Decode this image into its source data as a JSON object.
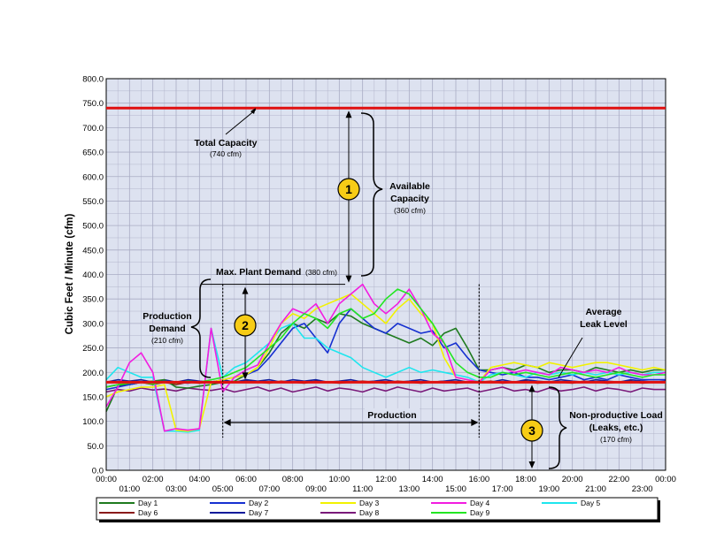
{
  "chart_data": {
    "type": "line",
    "ylabel": "Cubic Feet / Minute (cfm)",
    "ylim": [
      0,
      800
    ],
    "y_ticks": [
      "0.0",
      "50.0",
      "100.0",
      "150.0",
      "200.0",
      "250.0",
      "300.0",
      "350.0",
      "400.0",
      "450.0",
      "500.0",
      "550.0",
      "600.0",
      "650.0",
      "700.0",
      "750.0",
      "800.0"
    ],
    "x_ticks_top": [
      "00:00",
      "02:00",
      "04:00",
      "06:00",
      "08:00",
      "10:00",
      "12:00",
      "14:00",
      "16:00",
      "18:00",
      "20:00",
      "22:00",
      "00:00"
    ],
    "x_ticks_bottom": [
      "01:00",
      "03:00",
      "05:00",
      "07:00",
      "09:00",
      "11:00",
      "13:00",
      "15:00",
      "17:00",
      "19:00",
      "21:00",
      "23:00"
    ],
    "x_hours": [
      0,
      0.5,
      1,
      1.5,
      2,
      2.5,
      3,
      3.5,
      4,
      4.5,
      5,
      5.5,
      6,
      6.5,
      7,
      7.5,
      8,
      8.5,
      9,
      9.5,
      10,
      10.5,
      11,
      11.5,
      12,
      12.5,
      13,
      13.5,
      14,
      14.5,
      15,
      15.5,
      16,
      16.5,
      17,
      17.5,
      18,
      18.5,
      19,
      19.5,
      20,
      20.5,
      21,
      21.5,
      22,
      22.5,
      23,
      23.5,
      24
    ],
    "grid": true,
    "colors": {
      "background": "#dde2f0",
      "grid": "#a9acc4",
      "reference_line": "#e01010",
      "marker_fill": "#f7cc16"
    },
    "series": [
      {
        "name": "Day 1",
        "color": "#1e7a1e",
        "values": [
          120,
          172,
          175,
          180,
          182,
          185,
          170,
          168,
          172,
          175,
          180,
          182,
          195,
          210,
          240,
          280,
          300,
          290,
          310,
          300,
          320,
          315,
          300,
          290,
          280,
          270,
          260,
          270,
          255,
          280,
          290,
          250,
          205,
          205,
          210,
          205,
          215,
          210,
          200,
          205,
          205,
          200,
          210,
          205,
          200,
          205,
          200,
          205,
          205
        ]
      },
      {
        "name": "Day 2",
        "color": "#1630d0",
        "values": [
          165,
          170,
          175,
          180,
          178,
          182,
          180,
          178,
          182,
          180,
          185,
          190,
          195,
          205,
          230,
          260,
          290,
          300,
          270,
          240,
          300,
          330,
          310,
          290,
          280,
          300,
          290,
          280,
          285,
          250,
          260,
          230,
          205,
          200,
          195,
          200,
          190,
          190,
          185,
          190,
          195,
          185,
          190,
          185,
          195,
          190,
          185,
          185,
          185
        ]
      },
      {
        "name": "Day 3",
        "color": "#f2f200",
        "values": [
          150,
          160,
          165,
          170,
          170,
          175,
          82,
          80,
          85,
          180,
          185,
          190,
          195,
          210,
          250,
          300,
          320,
          310,
          330,
          340,
          350,
          360,
          340,
          320,
          300,
          330,
          350,
          320,
          300,
          230,
          190,
          185,
          180,
          210,
          215,
          220,
          215,
          210,
          220,
          215,
          210,
          215,
          220,
          220,
          215,
          210,
          205,
          210,
          205
        ]
      },
      {
        "name": "Day 4",
        "color": "#f21ce0",
        "values": [
          130,
          170,
          220,
          240,
          200,
          80,
          85,
          82,
          85,
          290,
          160,
          190,
          205,
          215,
          260,
          300,
          330,
          320,
          340,
          300,
          340,
          360,
          380,
          340,
          320,
          340,
          370,
          330,
          280,
          260,
          190,
          185,
          180,
          205,
          210,
          200,
          205,
          200,
          195,
          210,
          205,
          200,
          205,
          200,
          210,
          200,
          195,
          195,
          200
        ]
      },
      {
        "name": "Day 5",
        "color": "#1ee6ee",
        "values": [
          185,
          210,
          200,
          190,
          190,
          80,
          80,
          78,
          82,
          290,
          190,
          210,
          220,
          240,
          260,
          290,
          300,
          270,
          270,
          250,
          240,
          230,
          210,
          200,
          190,
          200,
          210,
          200,
          205,
          200,
          195,
          190,
          180,
          195,
          200,
          195,
          190,
          200,
          195,
          200,
          195,
          200,
          195,
          200,
          195,
          200,
          195,
          200,
          200
        ]
      },
      {
        "name": "Day 6",
        "color": "#8a1a1a",
        "values": [
          170,
          175,
          175,
          180,
          175,
          180,
          175,
          180,
          178,
          180,
          178,
          180,
          182,
          180,
          178,
          182,
          180,
          178,
          182,
          180,
          178,
          180,
          182,
          180,
          178,
          182,
          180,
          178,
          180,
          182,
          178,
          180,
          180,
          182,
          178,
          180,
          182,
          178,
          180,
          180,
          178,
          182,
          180,
          178,
          180,
          182,
          178,
          180,
          180
        ]
      },
      {
        "name": "Day 7",
        "color": "#0a1a9a",
        "values": [
          180,
          185,
          182,
          185,
          180,
          185,
          180,
          185,
          182,
          180,
          185,
          180,
          185,
          182,
          185,
          180,
          185,
          182,
          185,
          180,
          182,
          185,
          180,
          182,
          185,
          180,
          182,
          185,
          180,
          182,
          185,
          180,
          182,
          180,
          185,
          180,
          185,
          182,
          180,
          185,
          182,
          180,
          185,
          182,
          180,
          185,
          182,
          180,
          182
        ]
      },
      {
        "name": "Day 8",
        "color": "#7a1a7a",
        "values": [
          160,
          165,
          162,
          168,
          164,
          166,
          162,
          168,
          165,
          163,
          167,
          160,
          165,
          170,
          162,
          168,
          160,
          165,
          170,
          162,
          168,
          165,
          160,
          168,
          162,
          170,
          165,
          160,
          168,
          162,
          165,
          168,
          160,
          165,
          170,
          162,
          165,
          160,
          168,
          162,
          165,
          170,
          162,
          168,
          165,
          160,
          168,
          165,
          165
        ]
      },
      {
        "name": "Day 9",
        "color": "#22e622",
        "values": [
          170,
          175,
          178,
          180,
          176,
          180,
          178,
          182,
          180,
          185,
          190,
          200,
          210,
          230,
          250,
          270,
          300,
          320,
          310,
          290,
          320,
          330,
          310,
          320,
          350,
          370,
          360,
          330,
          300,
          260,
          220,
          200,
          190,
          190,
          200,
          195,
          200,
          195,
          190,
          195,
          200,
          195,
          190,
          195,
          200,
          195,
          190,
          195,
          195
        ]
      }
    ],
    "legend": {
      "placement": "bottom"
    }
  },
  "annotations": {
    "total_capacity": {
      "label": "Total Capacity",
      "value": "(740 cfm)",
      "y": 740
    },
    "max_demand": {
      "label": "Max. Plant Demand",
      "value": "(380 cfm)",
      "y": 380
    },
    "avg_leak": {
      "line1": "Average",
      "line2": "Leak Level",
      "y": 180
    },
    "available": {
      "line1": "Available",
      "line2": "Capacity",
      "value": "(360 cfm)"
    },
    "production_demand": {
      "line1": "Production",
      "line2": "Demand",
      "value": "(210 cfm)"
    },
    "production": {
      "label": "Production",
      "start_hour": 5,
      "end_hour": 16
    },
    "non_productive": {
      "line1": "Non-productive Load",
      "line2": "(Leaks, etc.)",
      "value": "(170 cfm)"
    },
    "markers": [
      "1",
      "2",
      "3"
    ]
  }
}
